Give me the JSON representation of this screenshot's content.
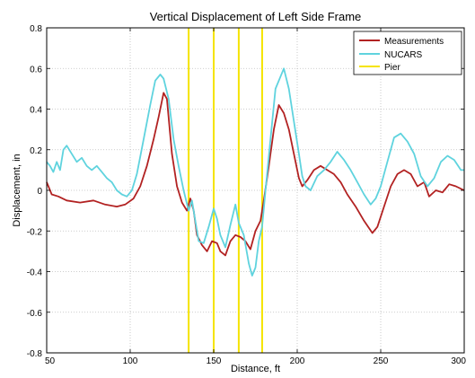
{
  "chart_data": {
    "type": "line",
    "title": "Vertical Displacement of Left Side Frame",
    "xlabel": "Distance, ft",
    "ylabel": "Displacement, in",
    "xlim": [
      50,
      300
    ],
    "ylim": [
      -0.8,
      0.8
    ],
    "x_ticks": [
      50,
      100,
      150,
      200,
      250,
      300
    ],
    "y_ticks": [
      -0.8,
      -0.6,
      -0.4,
      -0.2,
      0,
      0.2,
      0.4,
      0.6,
      0.8
    ],
    "x_tick_labels": [
      "50",
      "100",
      "150",
      "200",
      "250",
      "300"
    ],
    "y_tick_labels": [
      "-0.8",
      "-0.6",
      "-0.4",
      "-0.2",
      "0",
      "0.2",
      "0.4",
      "0.6",
      "0.8"
    ],
    "grid": true,
    "legend_position": "top-right",
    "series": [
      {
        "name": "Measurements",
        "color": "#b22222",
        "points": [
          [
            50,
            0.04
          ],
          [
            53,
            -0.02
          ],
          [
            57,
            -0.03
          ],
          [
            62,
            -0.05
          ],
          [
            70,
            -0.06
          ],
          [
            78,
            -0.05
          ],
          [
            85,
            -0.07
          ],
          [
            92,
            -0.08
          ],
          [
            97,
            -0.07
          ],
          [
            102,
            -0.04
          ],
          [
            106,
            0.02
          ],
          [
            110,
            0.12
          ],
          [
            114,
            0.25
          ],
          [
            117,
            0.36
          ],
          [
            120,
            0.48
          ],
          [
            122,
            0.45
          ],
          [
            125,
            0.18
          ],
          [
            128,
            0.02
          ],
          [
            131,
            -0.06
          ],
          [
            134,
            -0.1
          ],
          [
            136,
            -0.04
          ],
          [
            138,
            -0.1
          ],
          [
            140,
            -0.22
          ],
          [
            143,
            -0.27
          ],
          [
            146,
            -0.3
          ],
          [
            149,
            -0.25
          ],
          [
            152,
            -0.26
          ],
          [
            154,
            -0.3
          ],
          [
            157,
            -0.32
          ],
          [
            160,
            -0.25
          ],
          [
            163,
            -0.22
          ],
          [
            166,
            -0.23
          ],
          [
            169,
            -0.25
          ],
          [
            172,
            -0.29
          ],
          [
            175,
            -0.2
          ],
          [
            178,
            -0.15
          ],
          [
            180,
            -0.05
          ],
          [
            183,
            0.12
          ],
          [
            186,
            0.3
          ],
          [
            189,
            0.42
          ],
          [
            192,
            0.38
          ],
          [
            195,
            0.3
          ],
          [
            198,
            0.18
          ],
          [
            201,
            0.06
          ],
          [
            203,
            0.02
          ],
          [
            206,
            0.05
          ],
          [
            210,
            0.1
          ],
          [
            214,
            0.12
          ],
          [
            218,
            0.1
          ],
          [
            222,
            0.08
          ],
          [
            226,
            0.04
          ],
          [
            230,
            -0.02
          ],
          [
            235,
            -0.08
          ],
          [
            240,
            -0.15
          ],
          [
            245,
            -0.21
          ],
          [
            248,
            -0.18
          ],
          [
            252,
            -0.08
          ],
          [
            256,
            0.02
          ],
          [
            260,
            0.08
          ],
          [
            264,
            0.1
          ],
          [
            268,
            0.08
          ],
          [
            272,
            0.02
          ],
          [
            276,
            0.04
          ],
          [
            279,
            -0.03
          ],
          [
            283,
            0
          ],
          [
            287,
            -0.01
          ],
          [
            291,
            0.03
          ],
          [
            295,
            0.02
          ],
          [
            300,
            0.0
          ]
        ]
      },
      {
        "name": "NUCARS",
        "color": "#5fd3de",
        "points": [
          [
            50,
            0.14
          ],
          [
            52,
            0.12
          ],
          [
            54,
            0.09
          ],
          [
            56,
            0.14
          ],
          [
            58,
            0.1
          ],
          [
            60,
            0.2
          ],
          [
            62,
            0.22
          ],
          [
            65,
            0.18
          ],
          [
            68,
            0.14
          ],
          [
            71,
            0.16
          ],
          [
            74,
            0.12
          ],
          [
            77,
            0.1
          ],
          [
            80,
            0.12
          ],
          [
            83,
            0.09
          ],
          [
            86,
            0.06
          ],
          [
            89,
            0.04
          ],
          [
            92,
            0.0
          ],
          [
            95,
            -0.02
          ],
          [
            98,
            -0.03
          ],
          [
            101,
            0.0
          ],
          [
            104,
            0.08
          ],
          [
            108,
            0.25
          ],
          [
            112,
            0.42
          ],
          [
            115,
            0.54
          ],
          [
            118,
            0.57
          ],
          [
            120,
            0.55
          ],
          [
            123,
            0.45
          ],
          [
            126,
            0.25
          ],
          [
            129,
            0.12
          ],
          [
            132,
            0.0
          ],
          [
            135,
            -0.1
          ],
          [
            137,
            -0.05
          ],
          [
            139,
            -0.15
          ],
          [
            141,
            -0.25
          ],
          [
            144,
            -0.26
          ],
          [
            147,
            -0.18
          ],
          [
            150,
            -0.09
          ],
          [
            152,
            -0.14
          ],
          [
            154,
            -0.22
          ],
          [
            157,
            -0.28
          ],
          [
            160,
            -0.17
          ],
          [
            163,
            -0.07
          ],
          [
            165,
            -0.16
          ],
          [
            168,
            -0.22
          ],
          [
            171,
            -0.36
          ],
          [
            173,
            -0.42
          ],
          [
            175,
            -0.38
          ],
          [
            177,
            -0.25
          ],
          [
            179,
            -0.18
          ],
          [
            181,
            0.0
          ],
          [
            184,
            0.25
          ],
          [
            187,
            0.5
          ],
          [
            190,
            0.56
          ],
          [
            192,
            0.6
          ],
          [
            195,
            0.5
          ],
          [
            198,
            0.34
          ],
          [
            201,
            0.18
          ],
          [
            203,
            0.07
          ],
          [
            205,
            0.02
          ],
          [
            208,
            0.0
          ],
          [
            212,
            0.07
          ],
          [
            216,
            0.1
          ],
          [
            220,
            0.14
          ],
          [
            224,
            0.19
          ],
          [
            228,
            0.15
          ],
          [
            232,
            0.1
          ],
          [
            236,
            0.04
          ],
          [
            240,
            -0.02
          ],
          [
            244,
            -0.07
          ],
          [
            247,
            -0.04
          ],
          [
            250,
            0.02
          ],
          [
            254,
            0.14
          ],
          [
            258,
            0.26
          ],
          [
            262,
            0.28
          ],
          [
            266,
            0.24
          ],
          [
            270,
            0.18
          ],
          [
            274,
            0.07
          ],
          [
            278,
            0.02
          ],
          [
            282,
            0.06
          ],
          [
            286,
            0.14
          ],
          [
            290,
            0.17
          ],
          [
            294,
            0.15
          ],
          [
            298,
            0.1
          ],
          [
            300,
            0.1
          ]
        ]
      },
      {
        "name": "Pier",
        "color": "#f5e400",
        "vertical_lines": [
          135,
          150,
          165,
          179
        ]
      }
    ]
  }
}
